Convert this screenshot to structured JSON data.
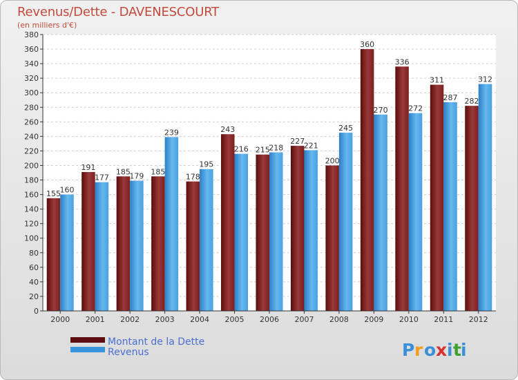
{
  "header": {
    "title": "Revenus/Dette - DAVENESCOURT",
    "subtitle": "(en milliers d'€)"
  },
  "logo": {
    "text": "Proxiti",
    "colors": [
      "#3a8fd8",
      "#f0a020",
      "#d83030",
      "#40a030"
    ]
  },
  "colors": {
    "series_dette_dark": "#5c0c0c",
    "series_dette_light": "#9a3a3a",
    "series_revenus_dark": "#2a7fc8",
    "series_revenus_light": "#66b8ee"
  },
  "chart_data": {
    "type": "bar",
    "title": "Revenus/Dette - DAVENESCOURT",
    "ylabel": "(en milliers d'€)",
    "xlabel": "",
    "ylim": [
      0,
      380
    ],
    "ytick_step": 20,
    "grid": true,
    "legend": "bottom-left",
    "categories": [
      "2000",
      "2001",
      "2002",
      "2003",
      "2004",
      "2005",
      "2006",
      "2007",
      "2008",
      "2009",
      "2010",
      "2011",
      "2012"
    ],
    "series": [
      {
        "name": "Montant de la Dette",
        "values": [
          155,
          191,
          185,
          185,
          178,
          243,
          215,
          227,
          200,
          360,
          336,
          311,
          282
        ]
      },
      {
        "name": "Revenus",
        "values": [
          160,
          177,
          179,
          239,
          195,
          216,
          218,
          221,
          245,
          270,
          272,
          287,
          312
        ]
      }
    ]
  }
}
